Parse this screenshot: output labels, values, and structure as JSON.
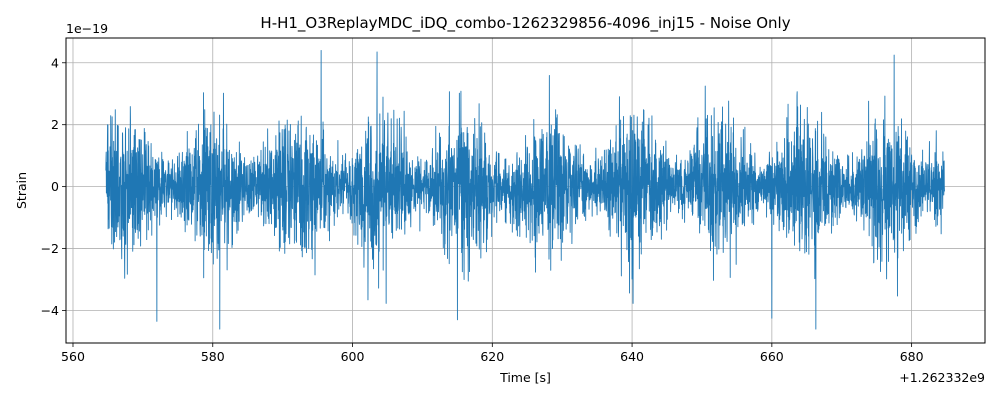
{
  "chart_data": {
    "type": "line",
    "title": "H-H1_O3ReplayMDC_iDQ_combo-1262329856-4096_inj15 - Noise Only",
    "xlabel": "Time [s]",
    "ylabel": "Strain",
    "x_offset_label": "+1.262332e9",
    "y_scale_label": "1e−19",
    "xlim": [
      559,
      690.5
    ],
    "ylim": [
      -5.05,
      4.8
    ],
    "xticks": [
      560,
      580,
      600,
      620,
      640,
      660,
      680
    ],
    "xtick_labels": [
      "560",
      "580",
      "600",
      "620",
      "640",
      "660",
      "680"
    ],
    "yticks": [
      -4,
      -2,
      0,
      2,
      4
    ],
    "ytick_labels": [
      "−4",
      "−2",
      "0",
      "2",
      "4"
    ],
    "grid": true,
    "series": [
      {
        "color": "#1f77b4",
        "x_range": [
          564.7,
          684.7
        ],
        "typical_amplitude": 1.1,
        "envelope_max": 4.4,
        "envelope_min": -4.6,
        "peaks": [
          {
            "x": 572.0,
            "y": -4.35
          },
          {
            "x": 581.0,
            "y": -4.6
          },
          {
            "x": 595.5,
            "y": 4.4
          },
          {
            "x": 603.5,
            "y": 4.35
          },
          {
            "x": 615.0,
            "y": -4.3
          },
          {
            "x": 660.0,
            "y": -4.25
          },
          {
            "x": 666.3,
            "y": -4.6
          },
          {
            "x": 677.5,
            "y": 4.25
          }
        ]
      }
    ]
  }
}
